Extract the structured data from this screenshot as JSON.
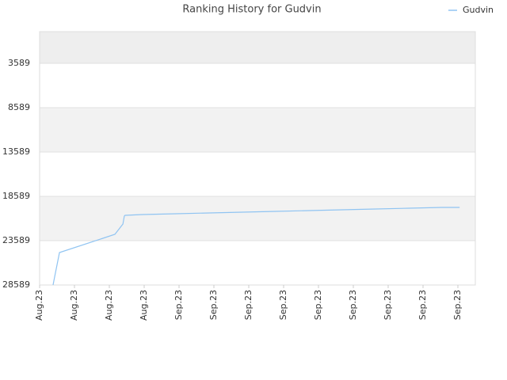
{
  "chart_data": {
    "type": "line",
    "title": "Ranking History for Gudvin",
    "x": [
      0.386,
      0.43,
      0.57,
      2.16,
      2.39,
      2.43,
      2.45,
      2.95,
      3.91,
      4.86,
      5.82,
      6.77,
      7.73,
      8.68,
      9.64,
      10.59,
      11.55,
      12.05
    ],
    "series": [
      {
        "name": "Gudvin",
        "color": "#90c4f2",
        "values": [
          28589,
          27696,
          24928,
          22875,
          21714,
          20821,
          20732,
          20643,
          20553,
          20464,
          20375,
          20286,
          20196,
          20107,
          20018,
          19928,
          19839,
          19839
        ]
      }
    ],
    "xlim": [
      0,
      12.5
    ],
    "xticks": [
      {
        "value": 0,
        "label": "Aug.23"
      },
      {
        "value": 1,
        "label": "Aug.23"
      },
      {
        "value": 2,
        "label": "Aug.23"
      },
      {
        "value": 3,
        "label": "Aug.23"
      },
      {
        "value": 4,
        "label": "Sep.23"
      },
      {
        "value": 5,
        "label": "Sep.23"
      },
      {
        "value": 6,
        "label": "Sep.23"
      },
      {
        "value": 7,
        "label": "Sep.23"
      },
      {
        "value": 8,
        "label": "Sep.23"
      },
      {
        "value": 9,
        "label": "Sep.23"
      },
      {
        "value": 10,
        "label": "Sep.23"
      },
      {
        "value": 11,
        "label": "Sep.23"
      },
      {
        "value": 12,
        "label": "Sep.23"
      }
    ],
    "ylim": [
      28589,
      18
    ],
    "yticks": [
      3589,
      8589,
      13589,
      18589,
      23589,
      28589
    ],
    "legend": "top-right"
  }
}
